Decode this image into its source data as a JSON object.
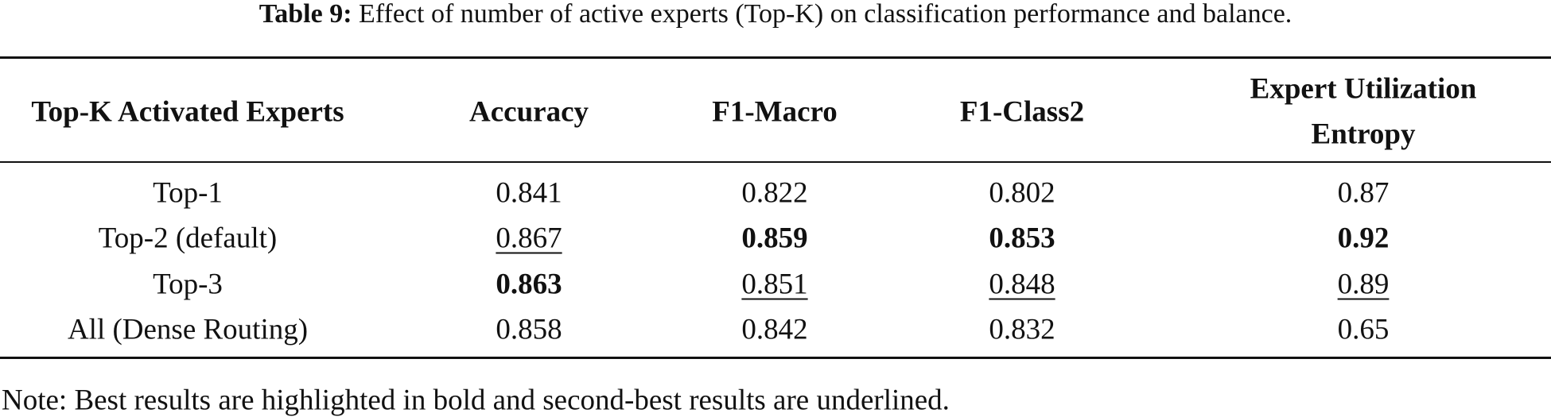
{
  "caption": {
    "label": "Table 9:",
    "text": "Effect of number of active experts (Top-K) on classification performance and balance."
  },
  "table": {
    "headers": [
      "Top-K Activated Experts",
      "Accuracy",
      "F1-Macro",
      "F1-Class2",
      [
        "Expert Utilization",
        "Entropy"
      ]
    ],
    "rows": [
      [
        "Top-1",
        "0.841",
        "0.822",
        "0.802",
        "0.87"
      ],
      [
        "Top-2 (default)",
        "0.867",
        "0.859",
        "0.853",
        "0.92"
      ],
      [
        "Top-3",
        "0.863",
        "0.851",
        "0.848",
        "0.89"
      ],
      [
        "All (Dense Routing)",
        "0.858",
        "0.842",
        "0.832",
        "0.65"
      ]
    ]
  },
  "note": "Note: Best results are highlighted in bold and second-best results are underlined."
}
